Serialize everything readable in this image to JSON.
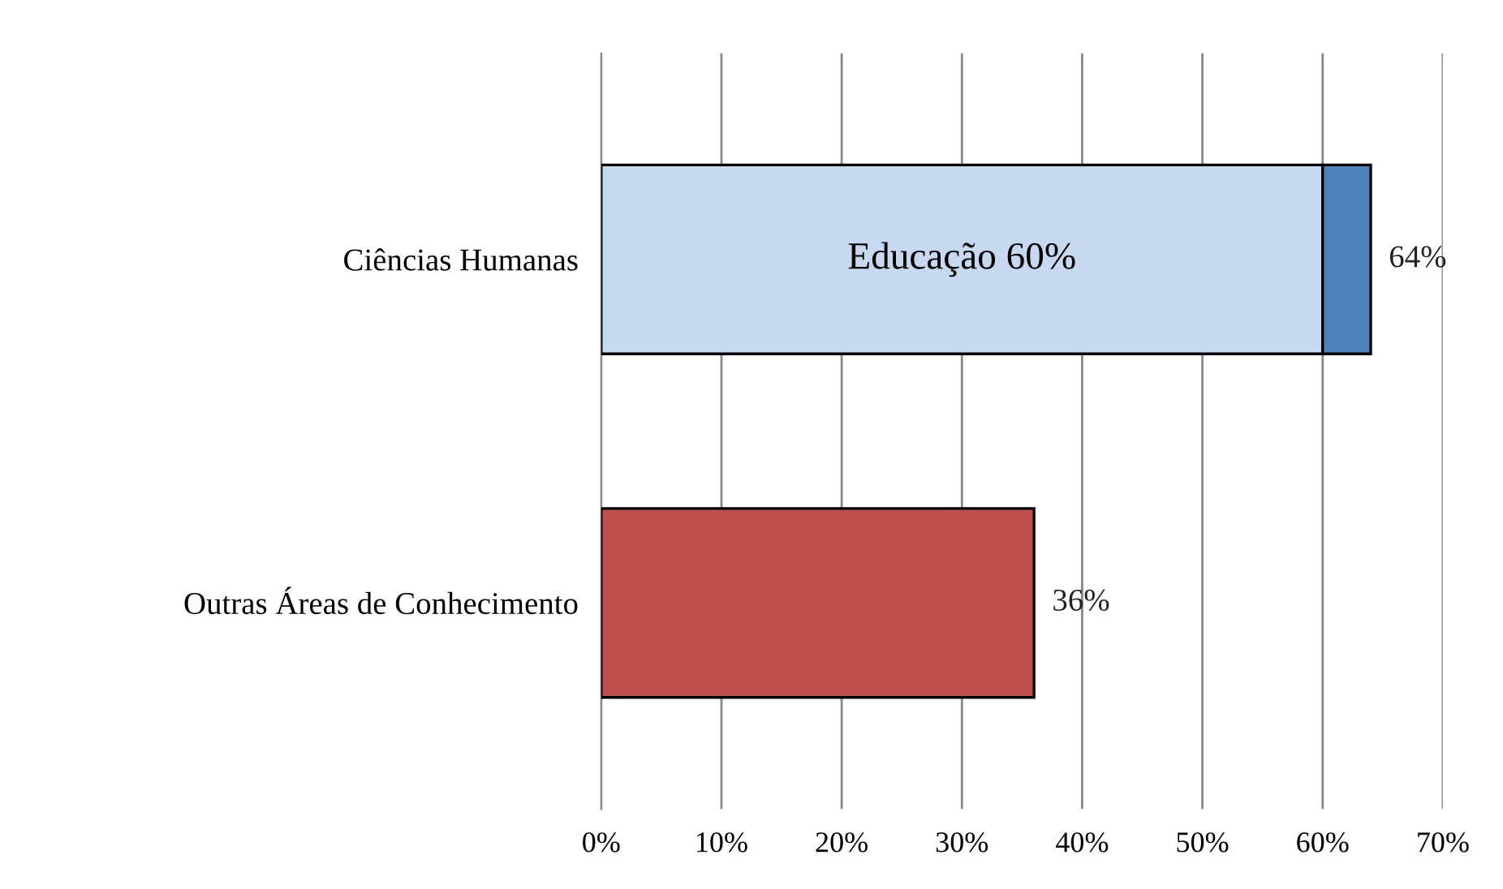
{
  "chart_data": {
    "type": "bar",
    "orientation": "horizontal",
    "stacked": true,
    "categories": [
      "Ciências Humanas",
      "Outras Áreas de Conhecimento"
    ],
    "series": [
      {
        "name": null,
        "colors": [
          "#c6d9f1",
          "#c0504d"
        ],
        "values": [
          60,
          36
        ],
        "value_labels": [
          "Educação 60%",
          null
        ]
      },
      {
        "name": null,
        "color": "#4f81bd",
        "values": [
          4,
          null
        ]
      }
    ],
    "totals": [
      "64%",
      "36%"
    ],
    "xlim": [
      0,
      70
    ],
    "xticks": [
      {
        "value": 0,
        "label": "0%"
      },
      {
        "value": 10,
        "label": "10%"
      },
      {
        "value": 20,
        "label": "20%"
      },
      {
        "value": 30,
        "label": "30%"
      },
      {
        "value": 40,
        "label": "40%"
      },
      {
        "value": 50,
        "label": "50%"
      },
      {
        "value": 60,
        "label": "60%"
      },
      {
        "value": 70,
        "label": "70%"
      }
    ],
    "grid": "x"
  }
}
